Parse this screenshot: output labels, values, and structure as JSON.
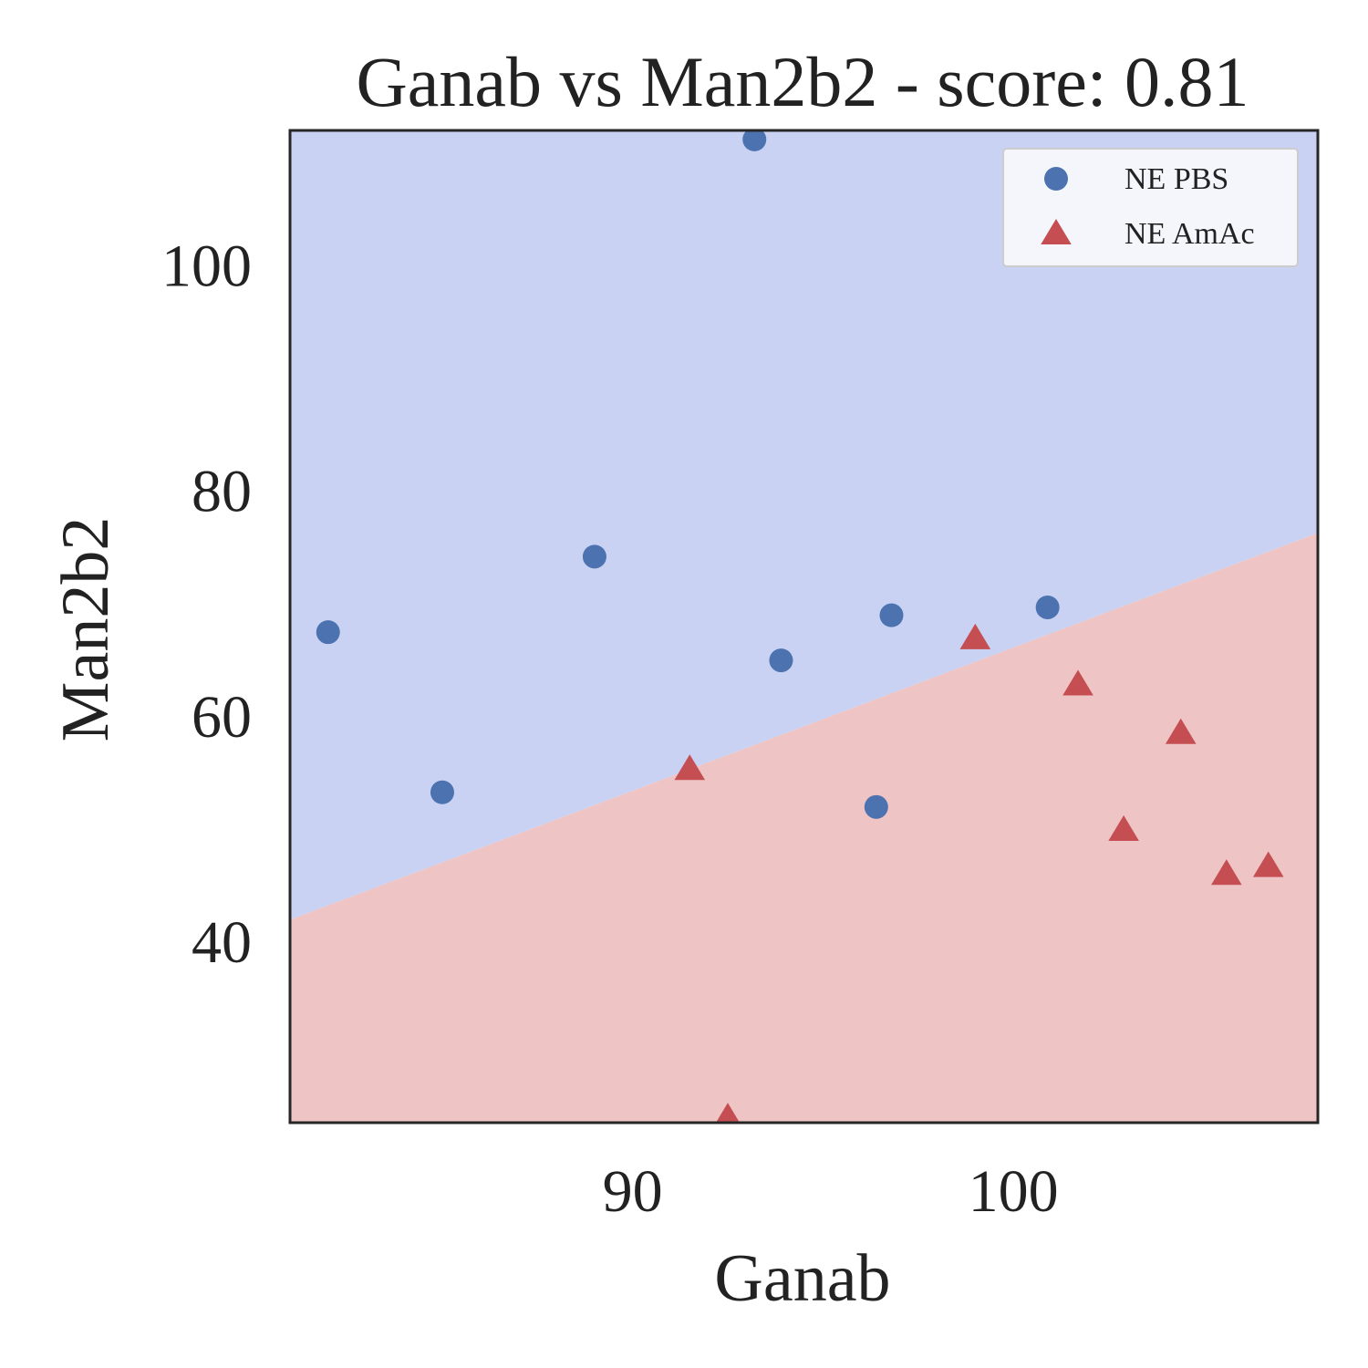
{
  "chart_data": {
    "type": "scatter",
    "title": "Ganab vs Man2b2 - score: 0.81",
    "xlabel": "Ganab",
    "ylabel": "Man2b2",
    "xlim": [
      81.0,
      108.0
    ],
    "ylim": [
      24.0,
      112.0
    ],
    "xticks": [
      90,
      100
    ],
    "yticks": [
      40,
      60,
      80,
      100
    ],
    "grid": false,
    "legend_position": "top-right",
    "decision_boundary": {
      "points": [
        [
          81.0,
          42.0
        ],
        [
          108.0,
          76.3
        ]
      ],
      "above_region_class": "NE PBS",
      "below_region_class": "NE AmAc",
      "above_color": "#c9d2f2",
      "below_color": "#efc4c4"
    },
    "series": [
      {
        "name": "NE PBS",
        "marker": "circle",
        "color": "#4c72b0",
        "points": [
          [
            82.0,
            67.5
          ],
          [
            85.0,
            53.3
          ],
          [
            89.0,
            74.2
          ],
          [
            93.2,
            111.2
          ],
          [
            93.9,
            65.0
          ],
          [
            96.4,
            52.0
          ],
          [
            96.8,
            69.0
          ],
          [
            100.9,
            69.7
          ]
        ]
      },
      {
        "name": "NE AmAc",
        "marker": "triangle",
        "color": "#c44e52",
        "points": [
          [
            91.5,
            55.2
          ],
          [
            92.5,
            24.3
          ],
          [
            99.0,
            66.8
          ],
          [
            101.7,
            62.7
          ],
          [
            102.9,
            49.8
          ],
          [
            104.4,
            58.4
          ],
          [
            105.6,
            45.9
          ],
          [
            106.7,
            46.6
          ]
        ]
      }
    ]
  }
}
